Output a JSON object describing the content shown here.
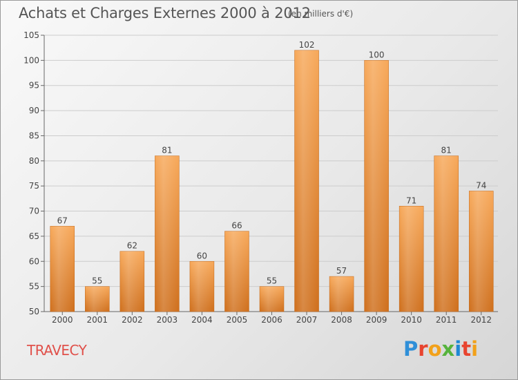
{
  "header": {
    "title": "Achats et Charges Externes 2000 à 2012",
    "subtitle": "(en milliers d'€)"
  },
  "footer": {
    "place": "TRAVECY",
    "logo": {
      "text": "Proxiti",
      "letter_colors": [
        "#2f8fd8",
        "#e8442f",
        "#f2a11a",
        "#56b33c",
        "#1e88d4",
        "#e8442f",
        "#f2a11a"
      ]
    }
  },
  "colors": {
    "bar_top": "#f7a859",
    "bar_bottom": "#cf6f1c",
    "grid": "#cccccc",
    "axis": "#666666",
    "text": "#444444"
  },
  "chart_data": {
    "type": "bar",
    "title": "Achats et Charges Externes 2000 à 2012",
    "subtitle": "(en milliers d'€)",
    "xlabel": "",
    "ylabel": "",
    "categories": [
      "2000",
      "2001",
      "2002",
      "2003",
      "2004",
      "2005",
      "2006",
      "2007",
      "2008",
      "2009",
      "2010",
      "2011",
      "2012"
    ],
    "values": [
      67,
      55,
      62,
      81,
      60,
      66,
      55,
      102,
      57,
      100,
      71,
      81,
      74
    ],
    "ylim": [
      50,
      105
    ],
    "yticks": [
      50,
      55,
      60,
      65,
      70,
      75,
      80,
      85,
      90,
      95,
      100,
      105
    ],
    "grid": true,
    "legend": "none"
  }
}
